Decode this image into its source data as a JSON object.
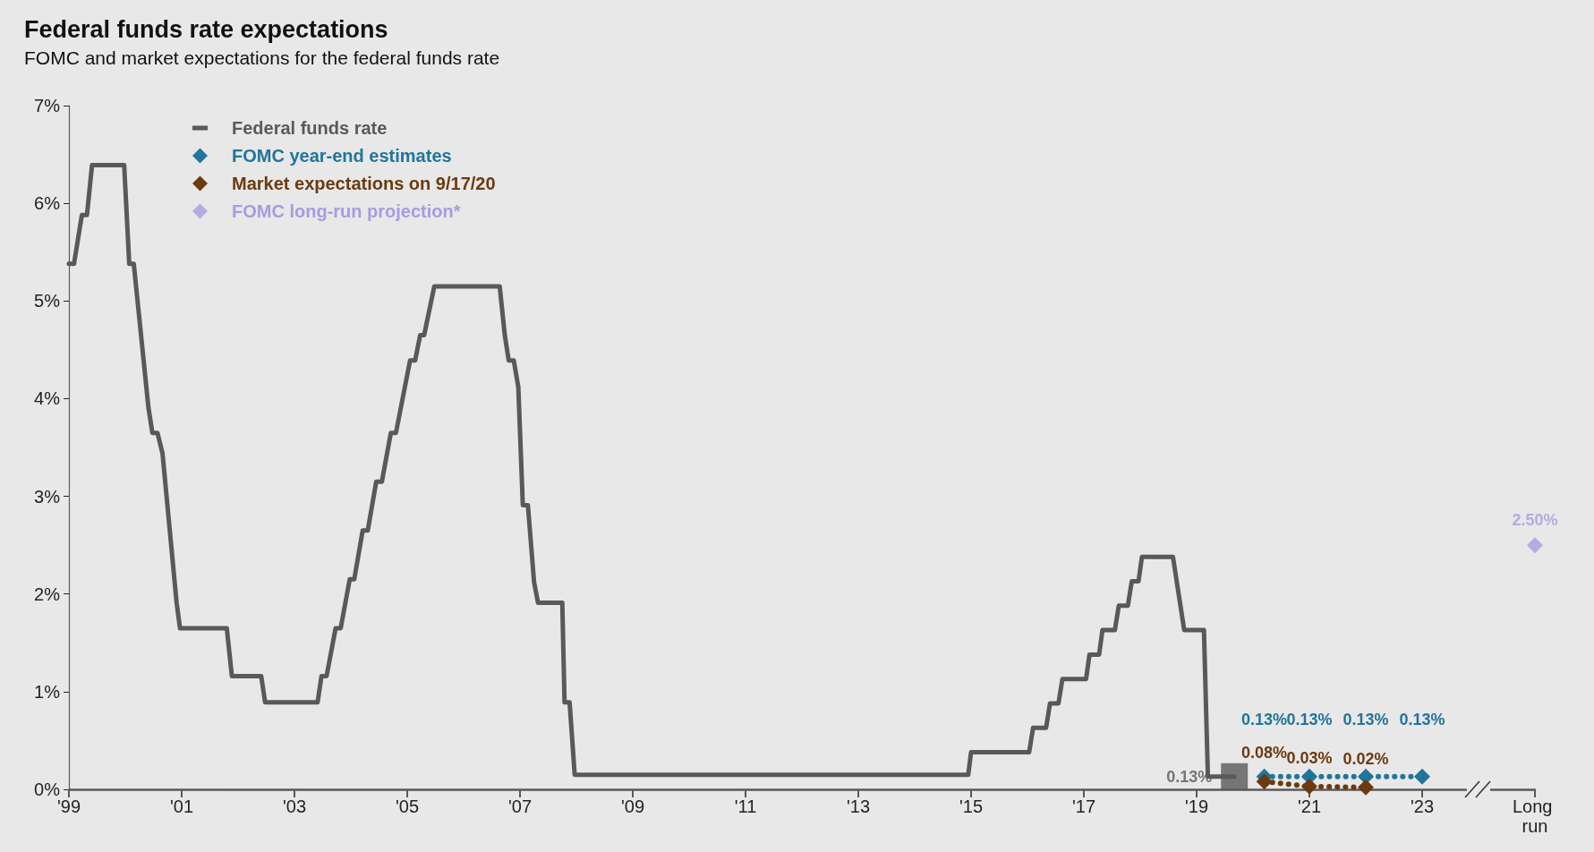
{
  "chart_data": {
    "type": "line",
    "title": "Federal funds rate expectations",
    "subtitle": "FOMC and market expectations for the federal funds rate",
    "xlim": [
      1999,
      2025
    ],
    "xticks": [
      {
        "value": 1999,
        "label": "'99"
      },
      {
        "value": 2001,
        "label": "'01"
      },
      {
        "value": 2003,
        "label": "'03"
      },
      {
        "value": 2005,
        "label": "'05"
      },
      {
        "value": 2007,
        "label": "'07"
      },
      {
        "value": 2009,
        "label": "'09"
      },
      {
        "value": 2011,
        "label": "'11"
      },
      {
        "value": 2013,
        "label": "'13"
      },
      {
        "value": 2015,
        "label": "'15"
      },
      {
        "value": 2017,
        "label": "'17"
      },
      {
        "value": 2019,
        "label": "'19"
      },
      {
        "value": 2021,
        "label": "'21"
      },
      {
        "value": 2023,
        "label": "'23"
      },
      {
        "value": 2025,
        "label": "Long run"
      }
    ],
    "ylim": [
      0,
      7
    ],
    "yticks": [
      {
        "value": 0,
        "label": "0%"
      },
      {
        "value": 1,
        "label": "1%"
      },
      {
        "value": 2,
        "label": "2%"
      },
      {
        "value": 3,
        "label": "3%"
      },
      {
        "value": 4,
        "label": "4%"
      },
      {
        "value": 5,
        "label": "5%"
      },
      {
        "value": 6,
        "label": "6%"
      },
      {
        "value": 7,
        "label": "7%"
      }
    ],
    "grid": false,
    "legend": "top left",
    "series": [
      {
        "name": "Federal funds rate",
        "type": "line",
        "color": "#595959",
        "marker": "none",
        "line_style": "solid",
        "x": [
          1999.0,
          1999.09,
          1999.23,
          1999.32,
          1999.41,
          1999.98,
          2000.07,
          2000.15,
          2000.41,
          2000.48,
          2000.57,
          2000.66,
          2000.91,
          2000.97,
          2001.8,
          2001.89,
          2002.41,
          2002.48,
          2003.41,
          2003.48,
          2003.57,
          2003.73,
          2003.82,
          2003.98,
          2004.06,
          2004.21,
          2004.3,
          2004.45,
          2004.55,
          2004.71,
          2004.8,
          2005.05,
          2005.14,
          2005.23,
          2005.3,
          2005.48,
          2006.64,
          2006.73,
          2006.8,
          2006.89,
          2006.97,
          2007.05,
          2007.14,
          2007.25,
          2007.32,
          2007.75,
          2007.79,
          2007.88,
          2007.97,
          2014.95,
          2015.0,
          2016.03,
          2016.1,
          2016.33,
          2016.4,
          2016.55,
          2016.62,
          2017.04,
          2017.1,
          2017.27,
          2017.33,
          2017.55,
          2017.62,
          2017.78,
          2017.85,
          2017.97,
          2018.03,
          2018.58,
          2018.78,
          2019.13,
          2019.2,
          2019.67
        ],
        "values": [
          5.38,
          5.38,
          5.88,
          5.88,
          6.39,
          6.39,
          5.38,
          5.38,
          3.91,
          3.65,
          3.65,
          3.44,
          1.91,
          1.65,
          1.65,
          1.16,
          1.16,
          0.89,
          0.89,
          1.16,
          1.16,
          1.65,
          1.65,
          2.15,
          2.15,
          2.65,
          2.65,
          3.15,
          3.15,
          3.65,
          3.65,
          4.39,
          4.39,
          4.65,
          4.65,
          5.15,
          5.15,
          4.65,
          4.39,
          4.39,
          4.12,
          2.91,
          2.91,
          2.12,
          1.91,
          1.91,
          0.89,
          0.89,
          0.15,
          0.15,
          0.38,
          0.38,
          0.63,
          0.63,
          0.88,
          0.88,
          1.13,
          1.13,
          1.38,
          1.38,
          1.63,
          1.63,
          1.88,
          1.88,
          2.13,
          2.13,
          2.38,
          2.38,
          1.63,
          1.63,
          0.13,
          0.13
        ]
      },
      {
        "type": "scatter",
        "color": "#595959",
        "marker": "square",
        "x": [
          2019.67
        ],
        "values": [
          0.13
        ],
        "value_labels": [
          "0.13%"
        ]
      },
      {
        "name": "FOMC year-end estimates",
        "type": "line",
        "color": "#21759b",
        "marker": "diamond",
        "line_style": "dotted",
        "x": [
          2020.2,
          2021,
          2022,
          2023
        ],
        "values": [
          0.13,
          0.13,
          0.13,
          0.13
        ],
        "value_labels": [
          "0.13%",
          "0.13%",
          "0.13%",
          "0.13%"
        ]
      },
      {
        "name": "Market expectations on 9/17/20",
        "type": "line",
        "color": "#6b3a10",
        "marker": "diamond",
        "line_style": "dotted",
        "x": [
          2020.2,
          2021,
          2022
        ],
        "values": [
          0.08,
          0.03,
          0.02
        ],
        "value_labels": [
          "0.08%",
          "0.03%",
          "0.02%"
        ]
      },
      {
        "name": "FOMC long-run projection*",
        "type": "scatter",
        "color": "#a99be0",
        "marker": "diamond",
        "x": [
          2025
        ],
        "values": [
          2.5
        ],
        "value_labels": [
          "2.50%"
        ]
      }
    ]
  }
}
